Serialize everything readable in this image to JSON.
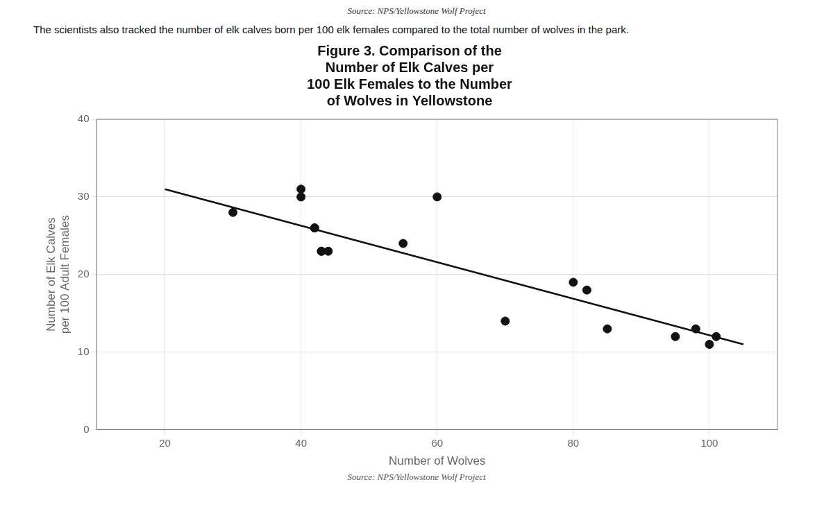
{
  "chart_data": {
    "type": "scatter",
    "title": "Figure 3. Comparison of the\nNumber of Elk Calves per\n100 Elk Females to the Number\nof Wolves in Yellowstone",
    "subtitle": "The scientists also tracked the number of elk calves born per 100 elk females compared to the total number of wolves in the park.",
    "annotations": [
      "Source: NPS/Yellowstone Wolf Project",
      "Source: NPS/Yellowstone Wolf Project"
    ],
    "xlabel": "Number of Wolves",
    "ylabel": "Number of Elk Calves\nper 100 Adult Females",
    "series": [
      {
        "type": "scatter",
        "color": "#111111",
        "marker": "circle",
        "x": [
          30,
          40,
          40,
          42,
          42,
          43,
          43,
          44,
          55,
          60,
          70,
          80,
          82,
          85,
          95,
          98,
          100,
          101
        ],
        "values": [
          28,
          31,
          30,
          26,
          26,
          23,
          23,
          23,
          24,
          30,
          14,
          19,
          18,
          13,
          12,
          13,
          11,
          12
        ]
      },
      {
        "type": "line",
        "color": "#111111",
        "line_style": "solid",
        "x": [
          20,
          105
        ],
        "values": [
          31,
          11
        ]
      }
    ],
    "xlim": [
      10,
      110
    ],
    "ylim": [
      0,
      40
    ],
    "xticks": [
      20,
      40,
      60,
      80,
      100
    ],
    "yticks": [
      0,
      10,
      20,
      30,
      40
    ],
    "grid": true
  }
}
